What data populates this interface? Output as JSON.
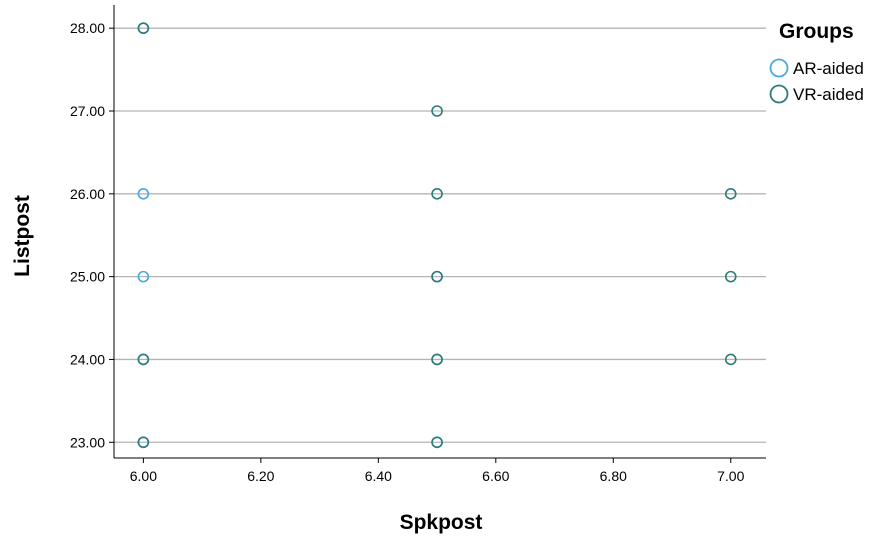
{
  "chart_data": {
    "type": "scatter",
    "xlabel": "Spkpost",
    "ylabel": "Listpost",
    "xlim": [
      5.95,
      7.06
    ],
    "ylim": [
      22.81,
      28.28
    ],
    "xticks": [
      "6.00",
      "6.20",
      "6.40",
      "6.60",
      "6.80",
      "7.00"
    ],
    "yticks": [
      "23.00",
      "24.00",
      "25.00",
      "26.00",
      "27.00",
      "28.00"
    ],
    "grid": "horizontal",
    "legend": {
      "title": "Groups",
      "position": "top-right"
    },
    "series": [
      {
        "name": "AR-aided",
        "color": "#4aa8e0",
        "points": [
          {
            "x": 6.0,
            "y": 28
          },
          {
            "x": 6.0,
            "y": 26
          },
          {
            "x": 6.0,
            "y": 25
          },
          {
            "x": 6.0,
            "y": 24
          },
          {
            "x": 6.0,
            "y": 23
          },
          {
            "x": 6.5,
            "y": 25
          },
          {
            "x": 6.5,
            "y": 24
          },
          {
            "x": 6.5,
            "y": 23
          }
        ]
      },
      {
        "name": "VR-aided",
        "color": "#2e7b7b",
        "points": [
          {
            "x": 6.0,
            "y": 28
          },
          {
            "x": 6.0,
            "y": 24
          },
          {
            "x": 6.0,
            "y": 23
          },
          {
            "x": 6.5,
            "y": 27
          },
          {
            "x": 6.5,
            "y": 26
          },
          {
            "x": 6.5,
            "y": 25
          },
          {
            "x": 6.5,
            "y": 24
          },
          {
            "x": 6.5,
            "y": 23
          },
          {
            "x": 7.0,
            "y": 26
          },
          {
            "x": 7.0,
            "y": 25
          },
          {
            "x": 7.0,
            "y": 24
          }
        ]
      }
    ]
  }
}
